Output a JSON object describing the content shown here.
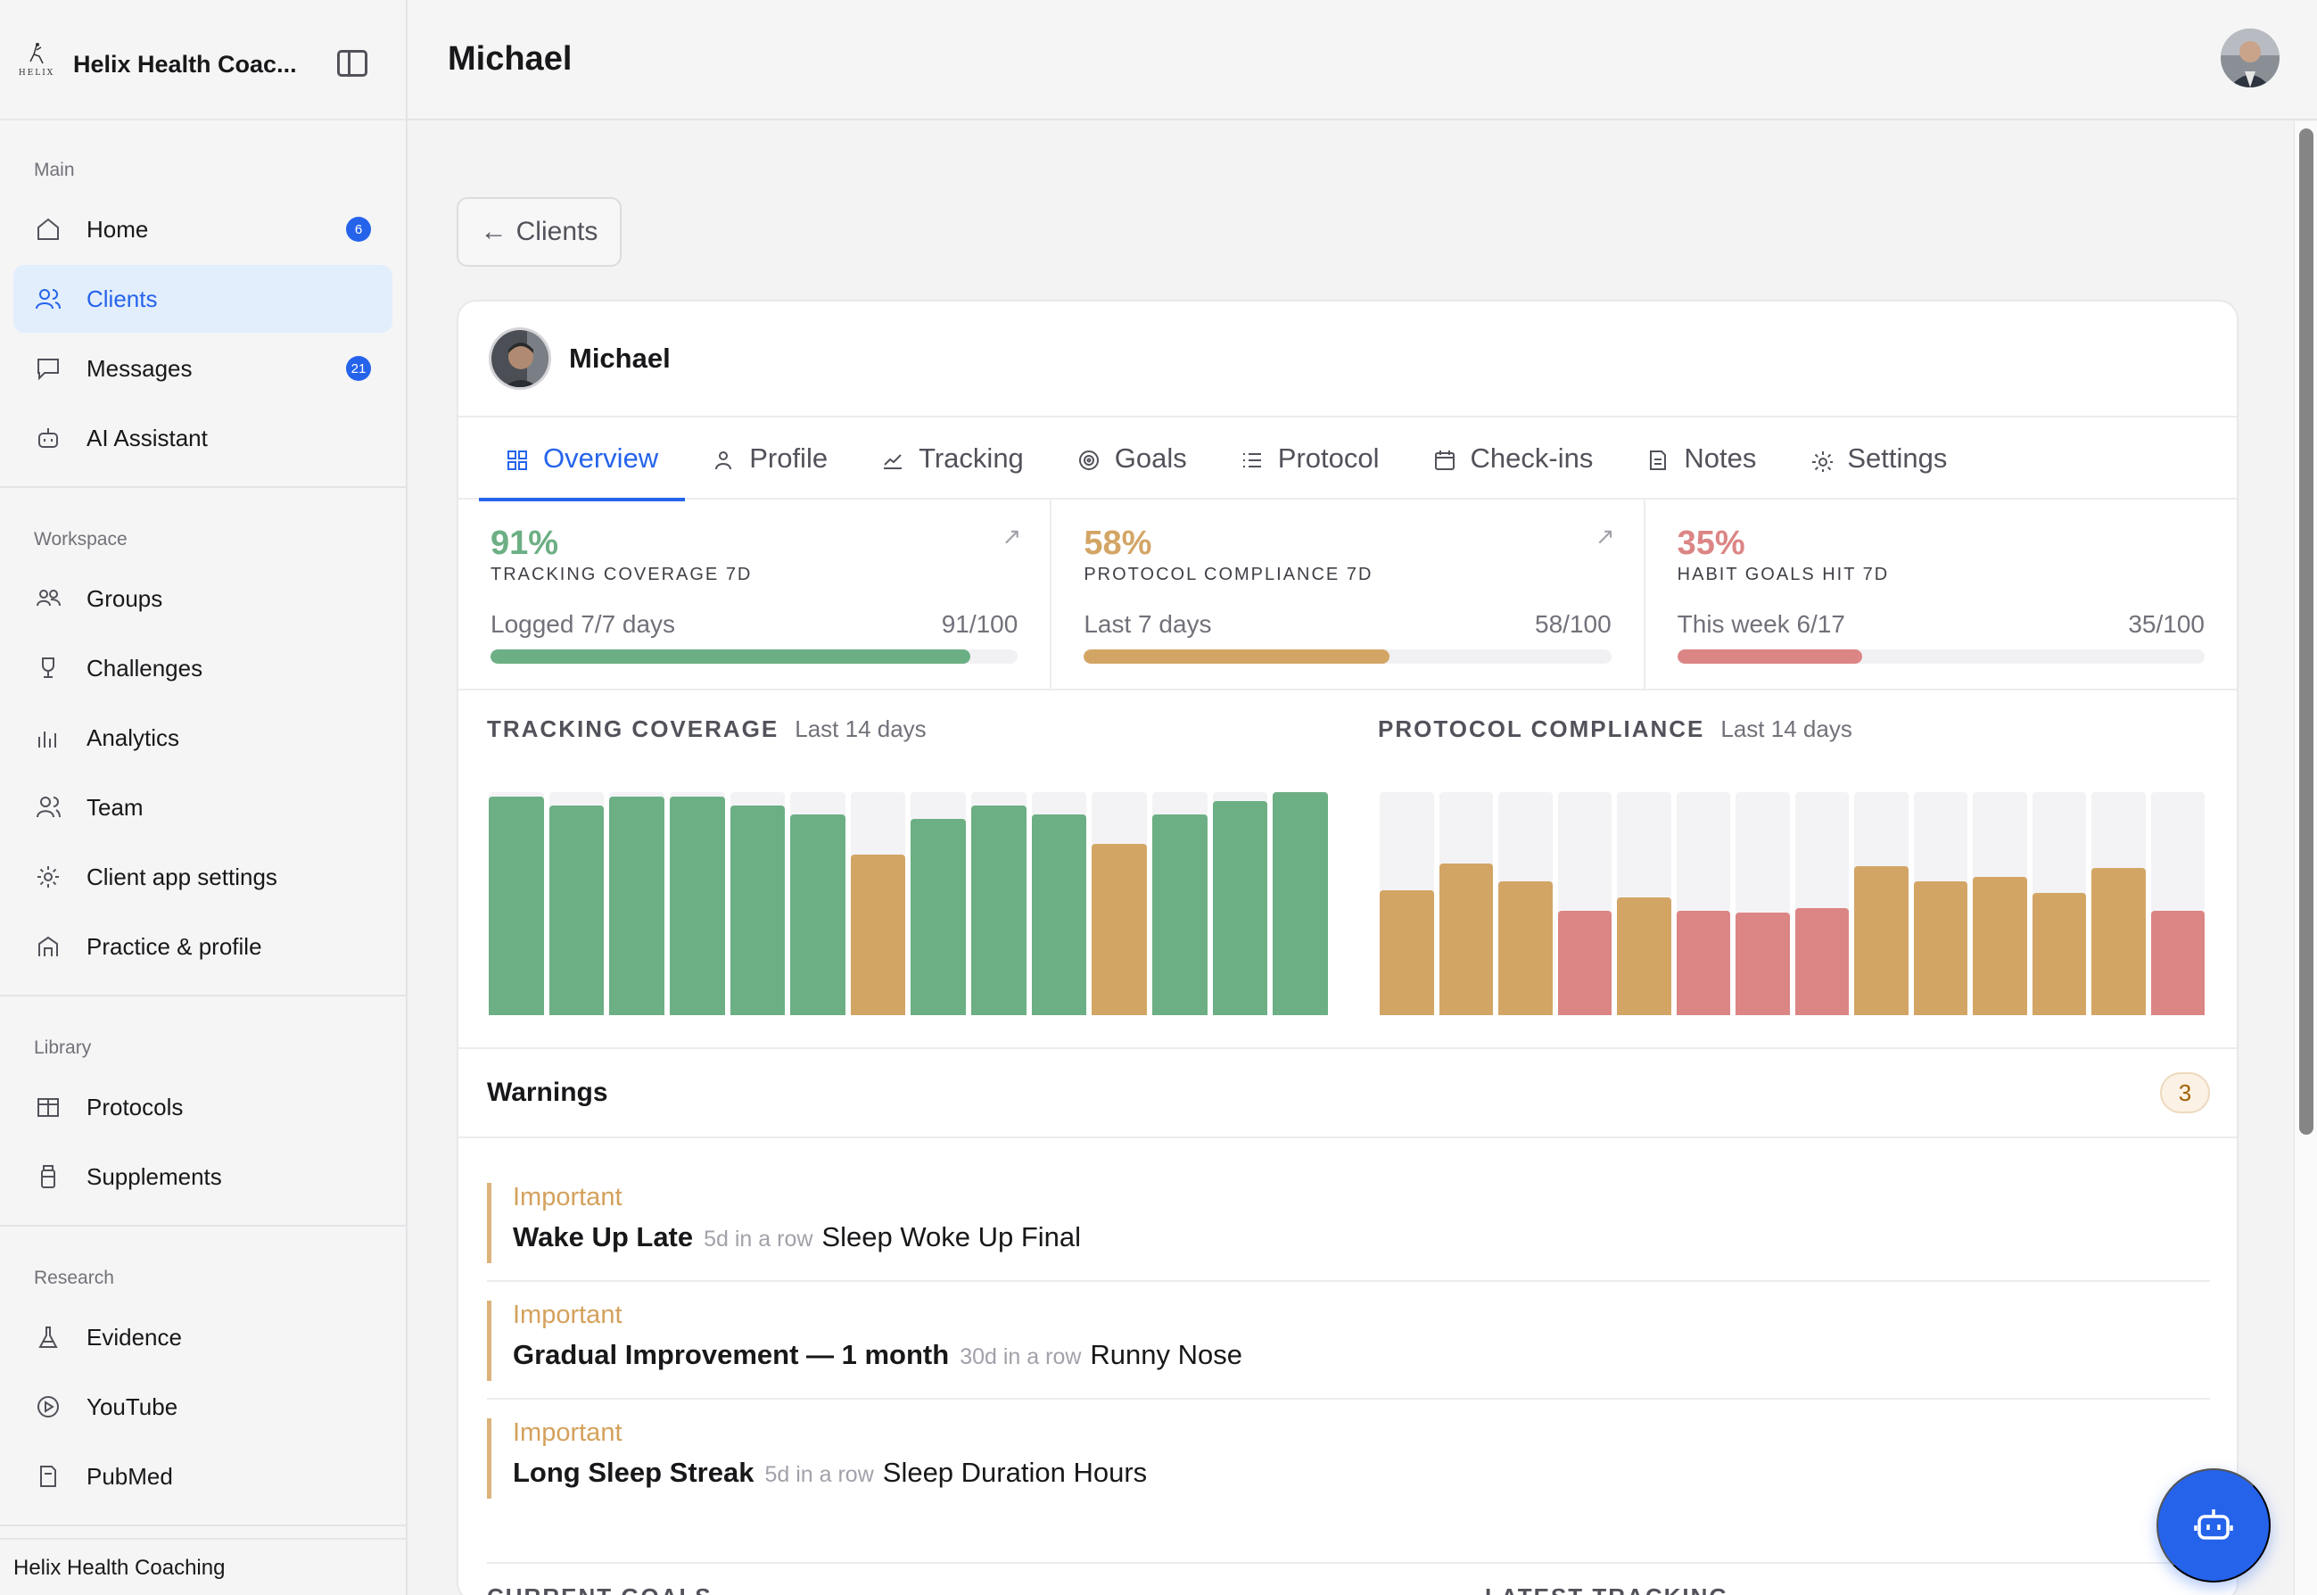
{
  "brand": {
    "name": "Helix Health Coac...",
    "logo_text": "HELIX"
  },
  "sidebar": {
    "sections": [
      {
        "heading": "Main",
        "items": [
          {
            "label": "Home",
            "icon": "home-icon",
            "badge": "6"
          },
          {
            "label": "Clients",
            "icon": "users-icon",
            "active": true
          },
          {
            "label": "Messages",
            "icon": "message-icon",
            "badge": "21"
          },
          {
            "label": "AI Assistant",
            "icon": "bot-icon"
          }
        ]
      },
      {
        "heading": "Workspace",
        "items": [
          {
            "label": "Groups",
            "icon": "groups-icon"
          },
          {
            "label": "Challenges",
            "icon": "trophy-icon"
          },
          {
            "label": "Analytics",
            "icon": "analytics-icon"
          },
          {
            "label": "Team",
            "icon": "team-icon"
          },
          {
            "label": "Client app settings",
            "icon": "gear-icon"
          },
          {
            "label": "Practice & profile",
            "icon": "building-icon"
          }
        ]
      },
      {
        "heading": "Library",
        "items": [
          {
            "label": "Protocols",
            "icon": "book-icon"
          },
          {
            "label": "Supplements",
            "icon": "bottle-icon"
          }
        ]
      },
      {
        "heading": "Research",
        "items": [
          {
            "label": "Evidence",
            "icon": "flask-icon"
          },
          {
            "label": "YouTube",
            "icon": "play-icon"
          },
          {
            "label": "PubMed",
            "icon": "document-icon"
          }
        ]
      }
    ],
    "footer": "Helix Health Coaching"
  },
  "header": {
    "title": "Michael"
  },
  "back_button": {
    "arrow": "←",
    "label": "Clients"
  },
  "client": {
    "name": "Michael"
  },
  "tabs": [
    {
      "label": "Overview",
      "icon": "grid-icon",
      "active": true
    },
    {
      "label": "Profile",
      "icon": "person-icon"
    },
    {
      "label": "Tracking",
      "icon": "chart-line-icon"
    },
    {
      "label": "Goals",
      "icon": "target-icon"
    },
    {
      "label": "Protocol",
      "icon": "list-icon"
    },
    {
      "label": "Check-ins",
      "icon": "calendar-icon"
    },
    {
      "label": "Notes",
      "icon": "note-icon"
    },
    {
      "label": "Settings",
      "icon": "gear-icon"
    }
  ],
  "kpis": [
    {
      "value": "91%",
      "label": "TRACKING COVERAGE 7D",
      "detail": "Logged 7/7 days",
      "score": "91/100",
      "progress": 0.91,
      "color": "#6caf84",
      "has_arrow": true,
      "arrow": "↗"
    },
    {
      "value": "58%",
      "label": "PROTOCOL COMPLIANCE 7D",
      "detail": "Last 7 days",
      "score": "58/100",
      "progress": 0.58,
      "color": "#d3a565",
      "has_arrow": true,
      "arrow": "↗"
    },
    {
      "value": "35%",
      "label": "HABIT GOALS HIT 7D",
      "detail": "This week 6/17",
      "score": "35/100",
      "progress": 0.35,
      "color": "#dc8585",
      "has_arrow": false
    }
  ],
  "charts": [
    {
      "title": "TRACKING COVERAGE",
      "subtitle": "Last 14 days",
      "values": [
        0.98,
        0.94,
        0.98,
        0.98,
        0.94,
        0.9,
        0.72,
        0.88,
        0.94,
        0.9,
        0.77,
        0.9,
        0.96,
        1.0
      ],
      "colors": [
        "green",
        "green",
        "green",
        "green",
        "green",
        "green",
        "amber",
        "green",
        "green",
        "green",
        "amber",
        "green",
        "green",
        "green"
      ]
    },
    {
      "title": "PROTOCOL COMPLIANCE",
      "subtitle": "Last 14 days",
      "values": [
        0.56,
        0.68,
        0.6,
        0.47,
        0.53,
        0.47,
        0.46,
        0.48,
        0.67,
        0.6,
        0.62,
        0.55,
        0.66,
        0.47
      ],
      "colors": [
        "amber",
        "amber",
        "amber",
        "red",
        "amber",
        "red",
        "red",
        "red",
        "amber",
        "amber",
        "amber",
        "amber",
        "amber",
        "red"
      ]
    }
  ],
  "colors": {
    "green": "#6caf84",
    "amber": "#d3a565",
    "red": "#dc8585",
    "accent": "#2563eb"
  },
  "warnings": {
    "title": "Warnings",
    "count": "3",
    "items": [
      {
        "level": "Important",
        "name": "Wake Up Late",
        "streak": "5d in a row",
        "metric": "Sleep Woke Up Final"
      },
      {
        "level": "Important",
        "name": "Gradual Improvement — 1 month",
        "streak": "30d in a row",
        "metric": "Runny Nose"
      },
      {
        "level": "Important",
        "name": "Long Sleep Streak",
        "streak": "5d in a row",
        "metric": "Sleep Duration Hours"
      }
    ]
  },
  "bottom": {
    "left_label": "CURRENT GOALS",
    "right_label": "LATEST TRACKING"
  }
}
